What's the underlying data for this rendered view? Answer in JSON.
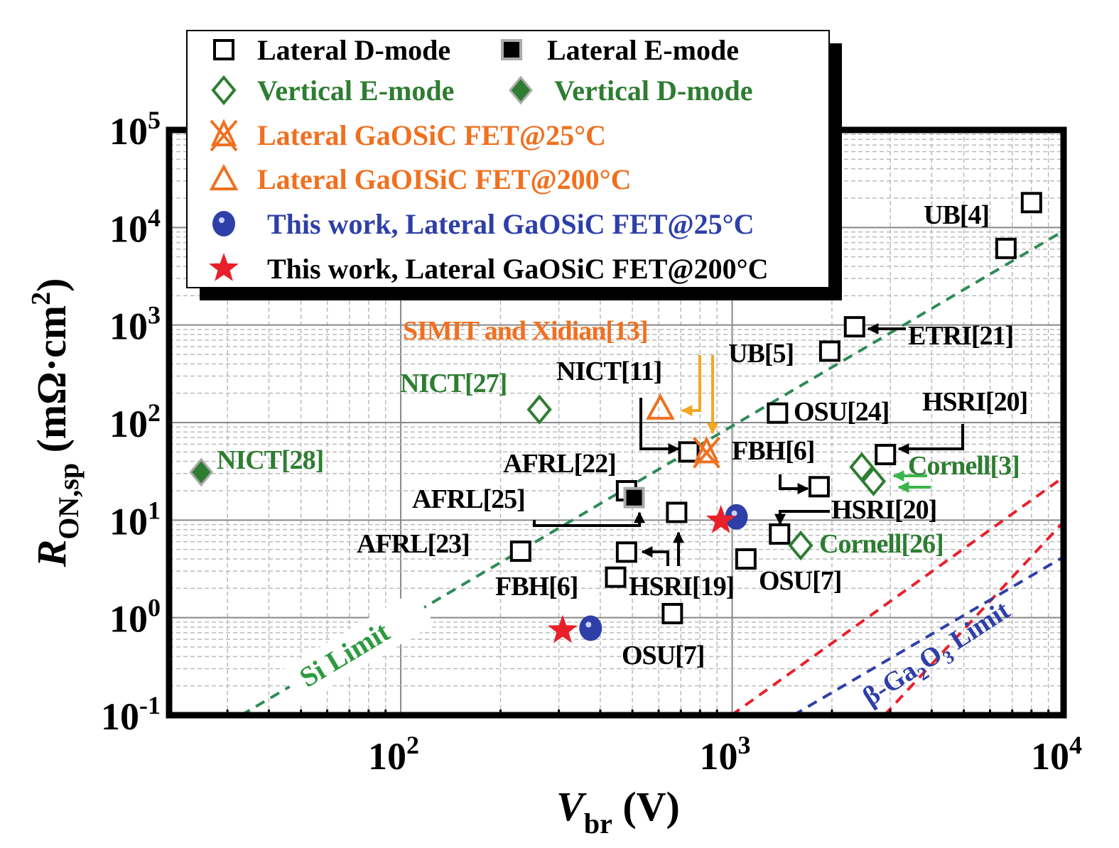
{
  "chart_data": {
    "type": "scatter",
    "title": "",
    "xlabel": "V",
    "xlabel_sub": "br",
    "xlabel_unit": " (V)",
    "ylabel": "R",
    "ylabel_sub": "ON,sp",
    "ylabel_unit": " (mΩ·cm",
    "ylabel_sup": "2",
    "ylabel_close": ")",
    "xscale": "log",
    "yscale": "log",
    "xlim": [
      20,
      10000
    ],
    "ylim": [
      0.1,
      100000
    ],
    "grid": true,
    "legend_position": "top-left",
    "x_ticks": [
      {
        "base": "10",
        "exp": "2",
        "value": 100
      },
      {
        "base": "10",
        "exp": "3",
        "value": 1000
      },
      {
        "base": "10",
        "exp": "4",
        "value": 10000
      }
    ],
    "y_ticks": [
      {
        "base": "10",
        "exp": "-1",
        "value": 0.1
      },
      {
        "base": "10",
        "exp": "0",
        "value": 1
      },
      {
        "base": "10",
        "exp": "1",
        "value": 10
      },
      {
        "base": "10",
        "exp": "2",
        "value": 100
      },
      {
        "base": "10",
        "exp": "3",
        "value": 1000
      },
      {
        "base": "10",
        "exp": "4",
        "value": 10000
      },
      {
        "base": "10",
        "exp": "5",
        "value": 100000
      }
    ],
    "series": [
      {
        "name": "Lateral D-mode",
        "marker": "square-open",
        "color": "#000000",
        "points": [
          [
            8000,
            18000
          ],
          [
            6700,
            6100
          ],
          [
            2340,
            960
          ],
          [
            1970,
            540
          ],
          [
            1370,
            125
          ],
          [
            2900,
            47
          ],
          [
            740,
            50
          ],
          [
            1830,
            22
          ],
          [
            480,
            20
          ],
          [
            680,
            12
          ],
          [
            1390,
            7.2
          ],
          [
            230,
            4.8
          ],
          [
            480,
            4.7
          ],
          [
            445,
            2.6
          ],
          [
            1100,
            4.0
          ],
          [
            660,
            1.1
          ]
        ]
      },
      {
        "name": "Lateral E-mode",
        "marker": "square-filled",
        "color": "#000000",
        "points": [
          [
            506,
            17
          ]
        ]
      },
      {
        "name": "Vertical E-mode",
        "marker": "diamond-open",
        "color": "#2e7d32",
        "points": [
          [
            262,
            136
          ],
          [
            2460,
            35
          ],
          [
            2670,
            25
          ],
          [
            1610,
            5.5
          ]
        ]
      },
      {
        "name": "Vertical D-mode",
        "marker": "diamond-filled",
        "color": "#2e7d32",
        "points": [
          [
            25,
            31
          ]
        ]
      },
      {
        "name": "Lateral GaOSiC FET@25°C",
        "marker": "x-triangle",
        "color": "#f07020",
        "points": [
          [
            837,
            50
          ]
        ]
      },
      {
        "name": "Lateral GaOISiC FET@200°C",
        "marker": "triangle-open",
        "color": "#f07020",
        "points": [
          [
            607,
            140
          ]
        ]
      },
      {
        "name": "This work, Lateral GaOSiC FET@25°C",
        "marker": "circle",
        "color": "#2e3fa8",
        "points": [
          [
            1030,
            10.8
          ],
          [
            374,
            0.78
          ]
        ]
      },
      {
        "name": "This work, Lateral GaOSiC FET@200°C",
        "marker": "star",
        "color": "#e8202a",
        "points": [
          [
            925,
            9.9
          ],
          [
            308,
            0.74
          ]
        ]
      }
    ],
    "limit_lines": [
      {
        "name": "Si Limit",
        "label": "Si Limit",
        "color": "#2e8b57",
        "points": [
          [
            33,
            0.1
          ],
          [
            10000,
            9240
          ]
        ]
      },
      {
        "name": "GaN Limit 1",
        "label": "",
        "color": "#e8202a",
        "points": [
          [
            995,
            0.1
          ],
          [
            10000,
            27.6
          ]
        ]
      },
      {
        "name": "GaN Limit 2",
        "label": "",
        "color": "#e8202a",
        "points": [
          [
            2880,
            0.1
          ],
          [
            10000,
            9.6
          ]
        ]
      },
      {
        "name": "beta-Ga2O3 Limit",
        "label": "β-Ga",
        "label_sub": "2",
        "label_mid": "O",
        "label_sub2": "3",
        "label_end": " Limit",
        "color": "#2e3fa8",
        "points": [
          [
            1530,
            0.1
          ],
          [
            10000,
            4.2
          ]
        ]
      }
    ],
    "annotations": [
      {
        "text": "UB[4]",
        "color": "#000000"
      },
      {
        "text": "ETRI[21]",
        "color": "#000000"
      },
      {
        "text": "UB[5]",
        "color": "#000000"
      },
      {
        "text": "SIMIT and Xidian[13]",
        "color": "#f07020"
      },
      {
        "text": "NICT[11]",
        "color": "#000000"
      },
      {
        "text": "NICT[27]",
        "color": "#2e7d32"
      },
      {
        "text": "OSU[24]",
        "color": "#000000"
      },
      {
        "text": "HSRI[20]",
        "color": "#000000"
      },
      {
        "text": "FBH[6]",
        "color": "#000000"
      },
      {
        "text": "Cornell[3]",
        "color": "#2e7d32"
      },
      {
        "text": "AFRL[22]",
        "color": "#000000"
      },
      {
        "text": "NICT[28]",
        "color": "#2e7d32"
      },
      {
        "text": "AFRL[25]",
        "color": "#000000"
      },
      {
        "text": "HSRI[20]",
        "color": "#000000"
      },
      {
        "text": "AFRL[23]",
        "color": "#000000"
      },
      {
        "text": "Cornell[26]",
        "color": "#2e7d32"
      },
      {
        "text": "FBH[6]",
        "color": "#000000"
      },
      {
        "text": "HSRI[19]",
        "color": "#000000"
      },
      {
        "text": "OSU[7]",
        "color": "#000000"
      },
      {
        "text": "OSU[7]",
        "color": "#000000"
      }
    ]
  }
}
